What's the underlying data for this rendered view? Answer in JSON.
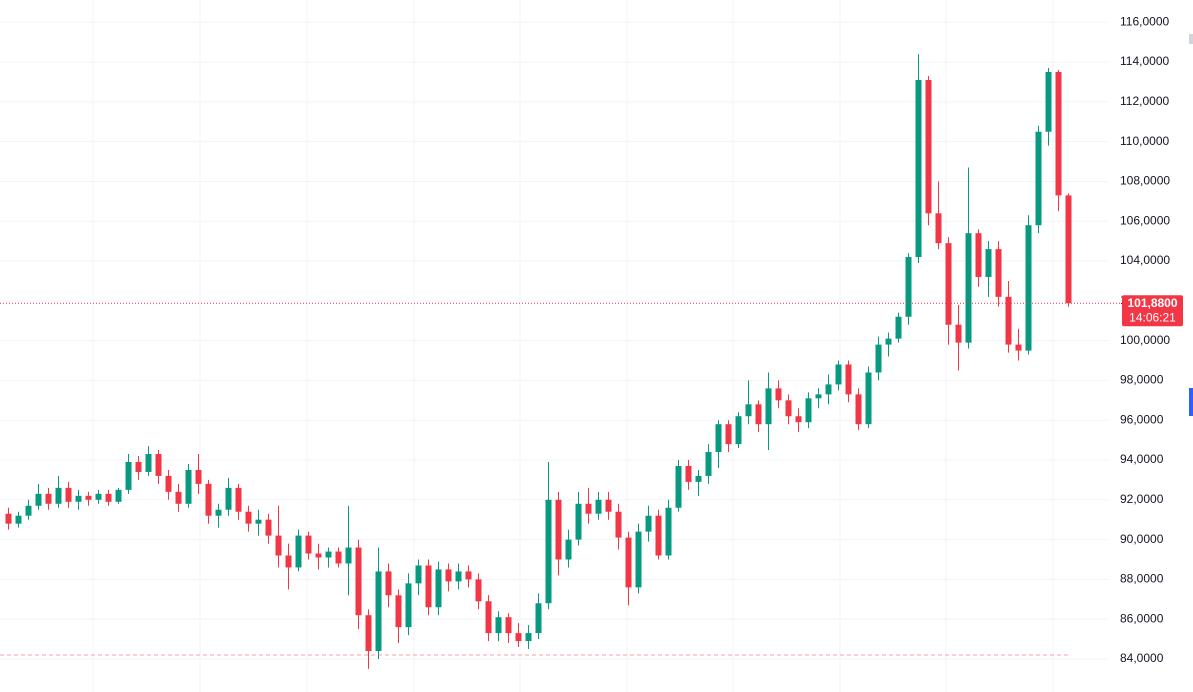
{
  "chart_data": {
    "type": "candlestick",
    "up_color": "#089981",
    "down_color": "#f23645",
    "ylim": [
      82.34,
      117.12
    ],
    "yticks": [
      {
        "value": 84,
        "label": "84,0000"
      },
      {
        "value": 86,
        "label": "86,0000"
      },
      {
        "value": 88,
        "label": "88,0000"
      },
      {
        "value": 90,
        "label": "90,0000"
      },
      {
        "value": 92,
        "label": "92,0000"
      },
      {
        "value": 94,
        "label": "94,0000"
      },
      {
        "value": 96,
        "label": "96,0000"
      },
      {
        "value": 98,
        "label": "98,0000"
      },
      {
        "value": 100,
        "label": "100,0000"
      },
      {
        "value": 102,
        "label": "102,0000"
      },
      {
        "value": 104,
        "label": "104,0000"
      },
      {
        "value": 106,
        "label": "106,0000"
      },
      {
        "value": 108,
        "label": "108,0000"
      },
      {
        "value": 110,
        "label": "110,0000"
      },
      {
        "value": 112,
        "label": "112,0000"
      },
      {
        "value": 114,
        "label": "114,0000"
      },
      {
        "value": 116,
        "label": "116,0000"
      }
    ],
    "grid": true,
    "last_price": {
      "value": 101.88,
      "label": "101,8800"
    },
    "countdown": "14:06:21",
    "reference_line": 84.2,
    "ohlc": [
      [
        91.3,
        91.6,
        90.5,
        90.8
      ],
      [
        90.8,
        91.4,
        90.6,
        91.2
      ],
      [
        91.2,
        92.0,
        91.0,
        91.7
      ],
      [
        91.7,
        92.8,
        91.5,
        92.3
      ],
      [
        92.3,
        92.6,
        91.5,
        91.8
      ],
      [
        91.8,
        93.2,
        91.6,
        92.6
      ],
      [
        92.6,
        92.9,
        91.6,
        91.9
      ],
      [
        91.9,
        92.5,
        91.5,
        92.2
      ],
      [
        92.2,
        92.4,
        91.7,
        92.0
      ],
      [
        92.0,
        92.5,
        91.8,
        92.3
      ],
      [
        92.3,
        92.5,
        91.7,
        91.9
      ],
      [
        91.9,
        92.6,
        91.8,
        92.5
      ],
      [
        92.5,
        94.3,
        92.3,
        93.9
      ],
      [
        93.9,
        94.2,
        93.0,
        93.4
      ],
      [
        93.4,
        94.7,
        93.2,
        94.3
      ],
      [
        94.3,
        94.5,
        92.8,
        93.2
      ],
      [
        93.2,
        93.5,
        92.0,
        92.4
      ],
      [
        92.4,
        92.8,
        91.4,
        91.8
      ],
      [
        91.8,
        93.8,
        91.6,
        93.5
      ],
      [
        93.5,
        94.3,
        92.3,
        92.8
      ],
      [
        92.8,
        93.0,
        90.8,
        91.2
      ],
      [
        91.2,
        91.8,
        90.6,
        91.5
      ],
      [
        91.5,
        93.1,
        91.2,
        92.6
      ],
      [
        92.6,
        92.8,
        91.0,
        91.4
      ],
      [
        91.4,
        91.7,
        90.4,
        90.8
      ],
      [
        90.8,
        91.5,
        90.2,
        91.0
      ],
      [
        91.0,
        91.3,
        89.8,
        90.2
      ],
      [
        90.2,
        91.7,
        88.6,
        89.2
      ],
      [
        89.2,
        89.8,
        87.5,
        88.6
      ],
      [
        88.6,
        90.5,
        88.4,
        90.2
      ],
      [
        90.2,
        90.4,
        89.0,
        89.3
      ],
      [
        89.3,
        89.8,
        88.5,
        89.1
      ],
      [
        89.1,
        89.6,
        88.6,
        89.4
      ],
      [
        89.4,
        89.6,
        88.6,
        88.8
      ],
      [
        88.8,
        91.7,
        87.2,
        89.6
      ],
      [
        89.6,
        90.0,
        85.5,
        86.2
      ],
      [
        86.2,
        86.5,
        83.5,
        84.4
      ],
      [
        84.4,
        89.6,
        84.0,
        88.4
      ],
      [
        88.4,
        88.8,
        86.6,
        87.2
      ],
      [
        87.2,
        87.5,
        84.8,
        85.6
      ],
      [
        85.6,
        88.3,
        85.2,
        87.8
      ],
      [
        87.8,
        89.0,
        87.2,
        88.7
      ],
      [
        88.7,
        89.0,
        86.2,
        86.6
      ],
      [
        86.6,
        88.9,
        86.2,
        88.5
      ],
      [
        88.5,
        88.8,
        87.4,
        87.9
      ],
      [
        87.9,
        88.8,
        87.5,
        88.4
      ],
      [
        88.4,
        88.7,
        87.6,
        88.0
      ],
      [
        88.0,
        88.3,
        86.5,
        86.9
      ],
      [
        86.9,
        87.2,
        84.9,
        85.3
      ],
      [
        85.3,
        86.4,
        84.9,
        86.1
      ],
      [
        86.1,
        86.3,
        84.8,
        85.3
      ],
      [
        85.3,
        85.8,
        84.6,
        84.9
      ],
      [
        84.9,
        85.7,
        84.5,
        85.3
      ],
      [
        85.3,
        87.3,
        85.0,
        86.8
      ],
      [
        86.8,
        93.9,
        86.5,
        92.0
      ],
      [
        92.0,
        92.4,
        88.2,
        89.0
      ],
      [
        89.0,
        90.5,
        88.6,
        90.0
      ],
      [
        90.0,
        92.4,
        89.7,
        91.8
      ],
      [
        91.8,
        92.6,
        90.8,
        91.3
      ],
      [
        91.3,
        92.4,
        91.0,
        92.0
      ],
      [
        92.0,
        92.4,
        91.0,
        91.4
      ],
      [
        91.4,
        91.8,
        89.5,
        90.1
      ],
      [
        90.1,
        90.4,
        86.7,
        87.6
      ],
      [
        87.6,
        90.8,
        87.3,
        90.4
      ],
      [
        90.4,
        91.7,
        89.9,
        91.2
      ],
      [
        91.2,
        91.5,
        89.0,
        89.2
      ],
      [
        89.2,
        92.0,
        89.0,
        91.6
      ],
      [
        91.6,
        94.0,
        91.4,
        93.7
      ],
      [
        93.7,
        94.0,
        92.5,
        92.9
      ],
      [
        92.9,
        93.5,
        92.2,
        93.2
      ],
      [
        93.2,
        94.8,
        92.8,
        94.4
      ],
      [
        94.4,
        96.0,
        93.6,
        95.8
      ],
      [
        95.8,
        96.0,
        94.4,
        94.8
      ],
      [
        94.8,
        96.4,
        94.6,
        96.2
      ],
      [
        96.2,
        98.0,
        95.8,
        96.8
      ],
      [
        96.8,
        97.0,
        95.4,
        95.8
      ],
      [
        95.8,
        98.4,
        94.5,
        97.6
      ],
      [
        97.6,
        98.0,
        96.6,
        97.0
      ],
      [
        97.0,
        97.3,
        95.8,
        96.2
      ],
      [
        96.2,
        96.6,
        95.4,
        95.9
      ],
      [
        95.9,
        97.4,
        95.6,
        97.1
      ],
      [
        97.1,
        97.6,
        96.6,
        97.3
      ],
      [
        97.3,
        98.3,
        96.8,
        97.8
      ],
      [
        97.8,
        99.0,
        97.5,
        98.8
      ],
      [
        98.8,
        99.0,
        96.9,
        97.3
      ],
      [
        97.3,
        97.6,
        95.5,
        95.8
      ],
      [
        95.8,
        98.7,
        95.6,
        98.4
      ],
      [
        98.4,
        100.2,
        98.0,
        99.8
      ],
      [
        99.8,
        100.4,
        99.2,
        100.1
      ],
      [
        100.1,
        101.4,
        99.9,
        101.2
      ],
      [
        101.2,
        104.4,
        100.8,
        104.2
      ],
      [
        104.2,
        114.4,
        103.9,
        113.1
      ],
      [
        113.1,
        113.3,
        105.8,
        106.4
      ],
      [
        106.4,
        108.0,
        104.6,
        104.9
      ],
      [
        104.9,
        105.2,
        99.8,
        100.8
      ],
      [
        100.8,
        101.8,
        98.5,
        99.9
      ],
      [
        99.9,
        108.7,
        99.6,
        105.4
      ],
      [
        105.4,
        105.6,
        102.7,
        103.2
      ],
      [
        103.2,
        105.0,
        102.2,
        104.6
      ],
      [
        104.6,
        105.0,
        101.7,
        102.2
      ],
      [
        102.2,
        103.0,
        99.4,
        99.8
      ],
      [
        99.8,
        100.6,
        99.0,
        99.5
      ],
      [
        99.5,
        106.3,
        99.3,
        105.8
      ],
      [
        105.8,
        110.8,
        105.4,
        110.5
      ],
      [
        110.5,
        113.7,
        109.8,
        113.5
      ],
      [
        113.5,
        113.6,
        106.5,
        107.3
      ],
      [
        107.3,
        107.4,
        101.7,
        101.88
      ]
    ]
  }
}
